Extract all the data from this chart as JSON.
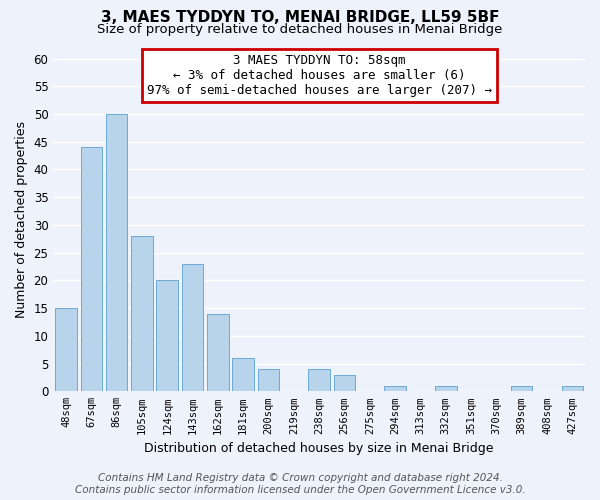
{
  "title": "3, MAES TYDDYN TO, MENAI BRIDGE, LL59 5BF",
  "subtitle": "Size of property relative to detached houses in Menai Bridge",
  "xlabel": "Distribution of detached houses by size in Menai Bridge",
  "ylabel": "Number of detached properties",
  "bar_color": "#b8d4ea",
  "bar_edge_color": "#6aaad4",
  "categories": [
    "48sqm",
    "67sqm",
    "86sqm",
    "105sqm",
    "124sqm",
    "143sqm",
    "162sqm",
    "181sqm",
    "200sqm",
    "219sqm",
    "238sqm",
    "256sqm",
    "275sqm",
    "294sqm",
    "313sqm",
    "332sqm",
    "351sqm",
    "370sqm",
    "389sqm",
    "408sqm",
    "427sqm"
  ],
  "values": [
    15,
    44,
    50,
    28,
    20,
    23,
    14,
    6,
    4,
    0,
    4,
    3,
    0,
    1,
    0,
    1,
    0,
    0,
    1,
    0,
    1
  ],
  "ylim": [
    0,
    62
  ],
  "yticks": [
    0,
    5,
    10,
    15,
    20,
    25,
    30,
    35,
    40,
    45,
    50,
    55,
    60
  ],
  "annotation_line1": "3 MAES TYDDYN TO: 58sqm",
  "annotation_line2": "← 3% of detached houses are smaller (6)",
  "annotation_line3": "97% of semi-detached houses are larger (207) →",
  "annotation_box_color": "#ffffff",
  "annotation_box_edge": "#cc0000",
  "footer_line1": "Contains HM Land Registry data © Crown copyright and database right 2024.",
  "footer_line2": "Contains public sector information licensed under the Open Government Licence v3.0.",
  "background_color": "#eef2fb",
  "grid_color": "#ffffff",
  "title_fontsize": 11,
  "subtitle_fontsize": 9.5,
  "annotation_fontsize": 9,
  "footer_fontsize": 7.5,
  "ylabel_fontsize": 9,
  "xlabel_fontsize": 9
}
